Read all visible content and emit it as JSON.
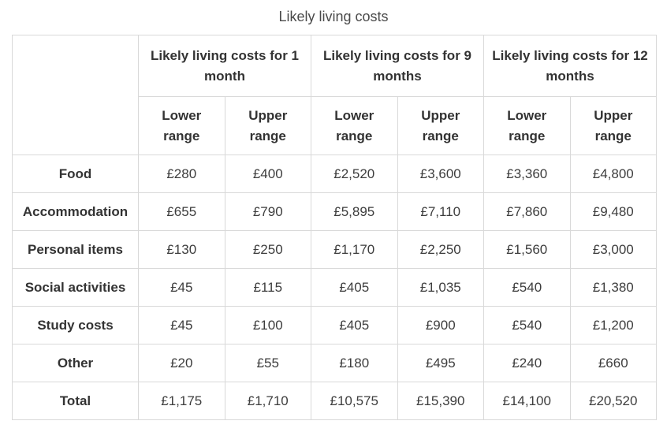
{
  "chart_data": {
    "type": "table",
    "title": "Likely living costs",
    "column_groups": [
      "Likely living costs for 1 month",
      "Likely living costs for 9 months",
      "Likely living costs for 12 months"
    ],
    "sub_columns": [
      "Lower range",
      "Upper range"
    ],
    "rows": [
      {
        "label": "Food",
        "values": [
          "£280",
          "£400",
          "£2,520",
          "£3,600",
          "£3,360",
          "£4,800"
        ]
      },
      {
        "label": "Accommodation",
        "values": [
          "£655",
          "£790",
          "£5,895",
          "£7,110",
          "£7,860",
          "£9,480"
        ]
      },
      {
        "label": "Personal items",
        "values": [
          "£130",
          "£250",
          "£1,170",
          "£2,250",
          "£1,560",
          "£3,000"
        ]
      },
      {
        "label": "Social activities",
        "values": [
          "£45",
          "£115",
          "£405",
          "£1,035",
          "£540",
          "£1,380"
        ]
      },
      {
        "label": "Study costs",
        "values": [
          "£45",
          "£100",
          "£405",
          "£900",
          "£540",
          "£1,200"
        ]
      },
      {
        "label": "Other",
        "values": [
          "£20",
          "£55",
          "£180",
          "£495",
          "£240",
          "£660"
        ]
      },
      {
        "label": "Total",
        "values": [
          "£1,175",
          "£1,710",
          "£10,575",
          "£15,390",
          "£14,100",
          "£20,520"
        ]
      }
    ],
    "layout_hints": {
      "grid": "on",
      "border_color": "#d9d9d9",
      "text_color": "#333333",
      "title_color": "#4a4a4a",
      "background": "#ffffff"
    }
  }
}
